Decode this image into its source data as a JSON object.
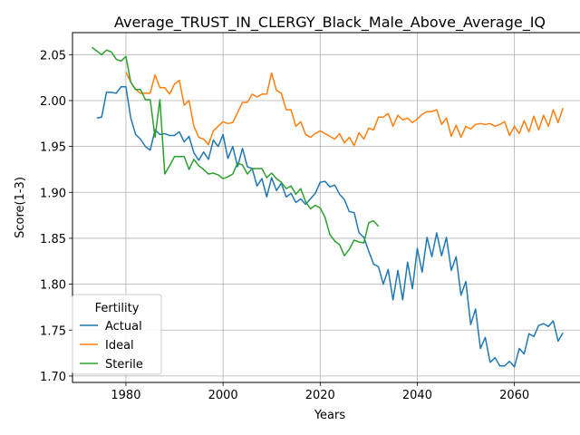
{
  "chart_data": {
    "type": "line",
    "title": "Average_TRUST_IN_CLERGY_Black_Male_Above_Average_IQ",
    "xlabel": "Years",
    "ylabel": "Score(1-3)",
    "xlim": [
      1969,
      2075
    ],
    "ylim": [
      1.693,
      2.074
    ],
    "xticks": [
      1980,
      2000,
      2020,
      2040,
      2060
    ],
    "yticks": [
      1.7,
      1.75,
      1.8,
      1.85,
      1.9,
      1.95,
      2.0,
      2.05
    ],
    "grid": true,
    "legend": {
      "title": "Fertility",
      "placement": "lower-left"
    },
    "series": [
      {
        "name": "Actual",
        "color": "#1f77b4",
        "x": [
          1974,
          1975,
          1976,
          1977,
          1978,
          1979,
          1980,
          1981,
          1982,
          1983,
          1984,
          1985,
          1986,
          1987,
          1988,
          1989,
          1990,
          1991,
          1992,
          1993,
          1994,
          1995,
          1996,
          1997,
          1998,
          1999,
          2000,
          2001,
          2002,
          2003,
          2004,
          2005,
          2006,
          2007,
          2008,
          2009,
          2010,
          2011,
          2012,
          2013,
          2014,
          2015,
          2016,
          2017,
          2018,
          2019,
          2020,
          2021,
          2022,
          2023,
          2024,
          2025,
          2026,
          2027,
          2028,
          2029,
          2030,
          2031,
          2032,
          2033,
          2034,
          2035,
          2036,
          2037,
          2038,
          2039,
          2040,
          2041,
          2042,
          2043,
          2044,
          2045,
          2046,
          2047,
          2048,
          2049,
          2050,
          2051,
          2052,
          2053,
          2054,
          2055,
          2056,
          2057,
          2058,
          2059,
          2060,
          2061,
          2062,
          2063,
          2064,
          2065,
          2066,
          2067,
          2068,
          2069,
          2070
        ],
        "y": [
          1.981,
          1.982,
          2.009,
          2.009,
          2.008,
          2.015,
          2.015,
          1.981,
          1.963,
          1.958,
          1.95,
          1.946,
          1.968,
          1.963,
          1.964,
          1.962,
          1.962,
          1.966,
          1.955,
          1.961,
          1.943,
          1.935,
          1.944,
          1.936,
          1.957,
          1.95,
          1.963,
          1.937,
          1.95,
          1.928,
          1.948,
          1.928,
          1.926,
          1.907,
          1.915,
          1.895,
          1.916,
          1.902,
          1.91,
          1.895,
          1.899,
          1.889,
          1.893,
          1.887,
          1.893,
          1.899,
          1.911,
          1.912,
          1.906,
          1.908,
          1.898,
          1.892,
          1.879,
          1.878,
          1.856,
          1.851,
          1.836,
          1.822,
          1.819,
          1.8,
          1.816,
          1.783,
          1.815,
          1.783,
          1.824,
          1.795,
          1.839,
          1.813,
          1.851,
          1.83,
          1.856,
          1.831,
          1.851,
          1.815,
          1.83,
          1.788,
          1.803,
          1.756,
          1.773,
          1.73,
          1.742,
          1.715,
          1.72,
          1.711,
          1.711,
          1.716,
          1.71,
          1.73,
          1.724,
          1.746,
          1.743,
          1.755,
          1.757,
          1.754,
          1.76,
          1.738,
          1.747
        ]
      },
      {
        "name": "Ideal",
        "color": "#ff7f0e",
        "x": [
          1980,
          1981,
          1982,
          1983,
          1984,
          1985,
          1986,
          1987,
          1988,
          1989,
          1990,
          1991,
          1992,
          1993,
          1994,
          1995,
          1996,
          1997,
          1998,
          1999,
          2000,
          2001,
          2002,
          2003,
          2004,
          2005,
          2006,
          2007,
          2008,
          2009,
          2010,
          2011,
          2012,
          2013,
          2014,
          2015,
          2016,
          2017,
          2018,
          2019,
          2020,
          2021,
          2022,
          2023,
          2024,
          2025,
          2026,
          2027,
          2028,
          2029,
          2030,
          2031,
          2032,
          2033,
          2034,
          2035,
          2036,
          2037,
          2038,
          2039,
          2040,
          2041,
          2042,
          2043,
          2044,
          2045,
          2046,
          2047,
          2048,
          2049,
          2050,
          2051,
          2052,
          2053,
          2054,
          2055,
          2056,
          2057,
          2058,
          2059,
          2060,
          2061,
          2062,
          2063,
          2064,
          2065,
          2066,
          2067,
          2068,
          2069,
          2070
        ],
        "y": [
          2.031,
          2.02,
          2.012,
          2.008,
          2.008,
          2.008,
          2.028,
          2.014,
          2.014,
          2.007,
          2.018,
          2.022,
          1.995,
          2.0,
          1.972,
          1.96,
          1.958,
          1.952,
          1.967,
          1.972,
          1.977,
          1.975,
          1.976,
          1.987,
          1.998,
          1.998,
          2.007,
          2.004,
          2.007,
          2.007,
          2.03,
          2.011,
          2.008,
          1.99,
          1.99,
          1.972,
          1.977,
          1.963,
          1.96,
          1.964,
          1.967,
          1.964,
          1.961,
          1.958,
          1.964,
          1.954,
          1.96,
          1.951,
          1.965,
          1.958,
          1.97,
          1.968,
          1.982,
          1.982,
          1.986,
          1.972,
          1.984,
          1.979,
          1.981,
          1.976,
          1.98,
          1.985,
          1.988,
          1.988,
          1.99,
          1.974,
          1.981,
          1.961,
          1.973,
          1.96,
          1.972,
          1.969,
          1.974,
          1.975,
          1.974,
          1.975,
          1.972,
          1.974,
          1.977,
          1.962,
          1.972,
          1.964,
          1.978,
          1.966,
          1.983,
          1.968,
          1.984,
          1.972,
          1.99,
          1.976,
          1.992
        ]
      },
      {
        "name": "Sterile",
        "color": "#2ca02c",
        "x": [
          1973,
          1974,
          1975,
          1976,
          1977,
          1978,
          1979,
          1980,
          1981,
          1982,
          1983,
          1984,
          1985,
          1986,
          1987,
          1988,
          1989,
          1990,
          1991,
          1992,
          1993,
          1994,
          1995,
          1996,
          1997,
          1998,
          1999,
          2000,
          2001,
          2002,
          2003,
          2004,
          2005,
          2006,
          2007,
          2008,
          2009,
          2010,
          2011,
          2012,
          2013,
          2014,
          2015,
          2016,
          2017,
          2018,
          2019,
          2020,
          2021,
          2022,
          2023,
          2024,
          2025,
          2026,
          2027,
          2028,
          2029,
          2030,
          2031,
          2032
        ],
        "y": [
          2.058,
          2.054,
          2.05,
          2.055,
          2.053,
          2.045,
          2.043,
          2.048,
          2.02,
          2.012,
          2.012,
          2.001,
          2.001,
          1.96,
          2.001,
          1.92,
          1.929,
          1.939,
          1.939,
          1.939,
          1.925,
          1.936,
          1.929,
          1.925,
          1.92,
          1.921,
          1.919,
          1.915,
          1.917,
          1.92,
          1.932,
          1.93,
          1.92,
          1.926,
          1.926,
          1.926,
          1.916,
          1.921,
          1.915,
          1.911,
          1.904,
          1.907,
          1.898,
          1.904,
          1.89,
          1.882,
          1.886,
          1.883,
          1.873,
          1.854,
          1.847,
          1.843,
          1.831,
          1.838,
          1.848,
          1.846,
          1.845,
          1.867,
          1.869,
          1.863
        ]
      }
    ]
  }
}
